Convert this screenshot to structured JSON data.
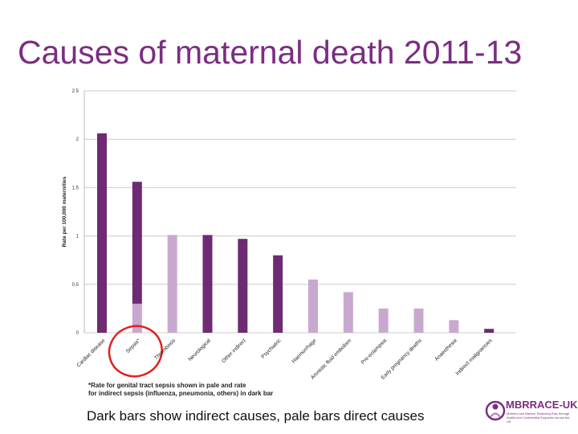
{
  "chart_data": {
    "type": "bar",
    "title": "Causes of maternal death 2011-13",
    "xlabel": "",
    "ylabel": "Rate per 100,000 maternities",
    "ylim": [
      0,
      2.5
    ],
    "yticks": [
      "0",
      "0.5",
      "1",
      "1.5",
      "2",
      "2.5"
    ],
    "ytick_values": [
      0,
      0.5,
      1,
      1.5,
      2,
      2.5
    ],
    "grid": true,
    "categories": [
      "Cardiac disease",
      "Sepsis*",
      "Thrombosis",
      "Neurological",
      "Other indirect",
      "Psychiatric",
      "Haemorrhage",
      "Amniotic fluid embolism",
      "Pre-eclampsia",
      "Early pregnancy deaths",
      "Anaesthesia",
      "Indirect malignancies"
    ],
    "series": [
      {
        "name": "Indirect causes",
        "color": "#6e2a72",
        "values": [
          2.06,
          1.26,
          0,
          1.01,
          0.97,
          0.8,
          0,
          0,
          0,
          0,
          0,
          0.04
        ]
      },
      {
        "name": "Direct causes",
        "color": "#c9a8cf",
        "values": [
          0,
          0.3,
          1.01,
          0,
          0,
          0,
          0.55,
          0.42,
          0.25,
          0.25,
          0.13,
          0
        ]
      }
    ],
    "annotation_circle_category": "Sepsis*",
    "annotation_color": "#e02020",
    "gridline_color": "#cccccc"
  },
  "footnote": {
    "line1": "*Rate for genital tract sepsis shown in pale and rate",
    "line2": "for indirect sepsis (influenza, pneumonia, others) in dark bar"
  },
  "caption": "Dark bars show indirect causes, pale bars direct causes",
  "logo": {
    "name": "MBRRACE-UK",
    "tagline": "Mothers and Babies: Reducing Risk through Audits and Confidential Enquiries across the UK",
    "color": "#7b2d83"
  }
}
